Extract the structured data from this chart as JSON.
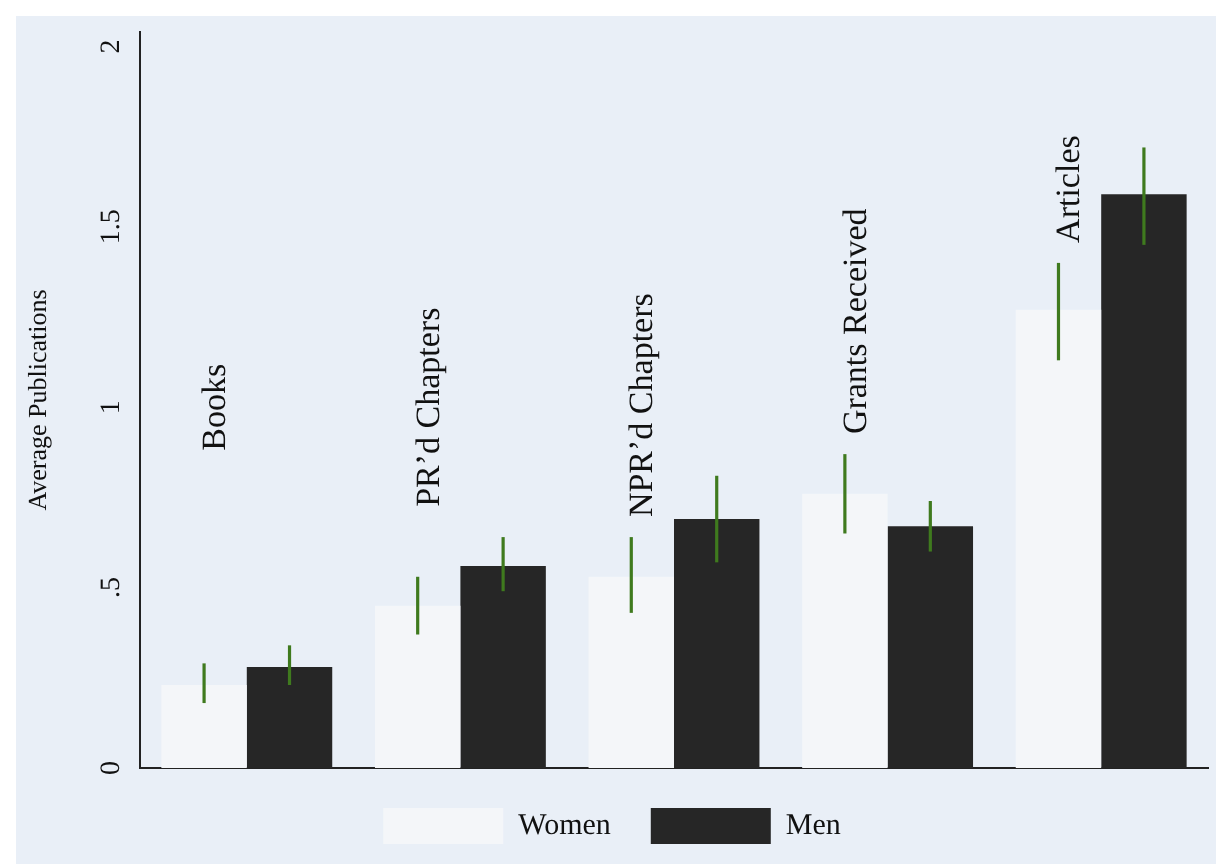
{
  "chart_data": {
    "type": "bar",
    "ylabel": "Average Publications",
    "categories": [
      "Books",
      "PR’d Chapters",
      "NPR’d Chapters",
      "Grants Received",
      "Articles"
    ],
    "series": [
      {
        "name": "Women",
        "color": "#f4f6f9",
        "values": [
          0.23,
          0.45,
          0.53,
          0.76,
          1.27
        ],
        "errors": [
          [
            0.18,
            0.29
          ],
          [
            0.37,
            0.53
          ],
          [
            0.43,
            0.64
          ],
          [
            0.65,
            0.87
          ],
          [
            1.13,
            1.4
          ]
        ]
      },
      {
        "name": "Men",
        "color": "#262626",
        "values": [
          0.28,
          0.56,
          0.69,
          0.67,
          1.59
        ],
        "errors": [
          [
            0.23,
            0.34
          ],
          [
            0.49,
            0.64
          ],
          [
            0.57,
            0.81
          ],
          [
            0.6,
            0.74
          ],
          [
            1.45,
            1.72
          ]
        ]
      }
    ],
    "ylim": [
      0,
      2.04
    ],
    "yticks": [
      0,
      {
        "value": 0.5,
        "label": ".5"
      },
      1,
      1.5,
      2
    ],
    "grid": false,
    "legend": "bottom"
  }
}
